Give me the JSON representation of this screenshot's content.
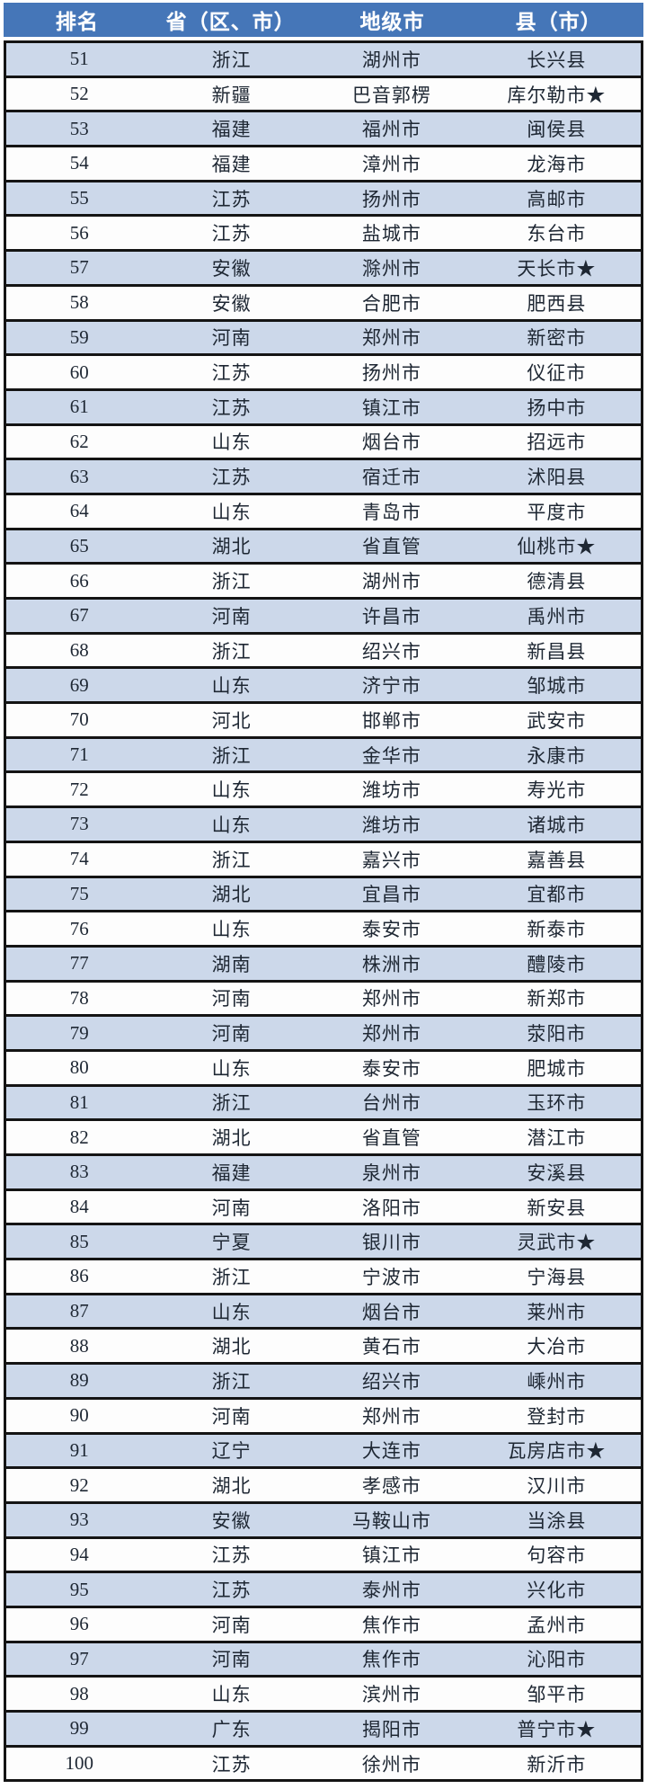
{
  "colors": {
    "header_bg": "#4576b8",
    "header_text": "#ffffff",
    "row_alt_bg": "#ccd8ea",
    "row_bg": "#fdfdfd",
    "border": "#141414",
    "cell_text": "#1e2733"
  },
  "table": {
    "headers": [
      "排名",
      "省（区、市）",
      "地级市",
      "县（市）"
    ],
    "rows": [
      {
        "rank": "51",
        "province": "浙江",
        "city": "湖州市",
        "county": "长兴县"
      },
      {
        "rank": "52",
        "province": "新疆",
        "city": "巴音郭楞",
        "county": "库尔勒市★"
      },
      {
        "rank": "53",
        "province": "福建",
        "city": "福州市",
        "county": "闽侯县"
      },
      {
        "rank": "54",
        "province": "福建",
        "city": "漳州市",
        "county": "龙海市"
      },
      {
        "rank": "55",
        "province": "江苏",
        "city": "扬州市",
        "county": "高邮市"
      },
      {
        "rank": "56",
        "province": "江苏",
        "city": "盐城市",
        "county": "东台市"
      },
      {
        "rank": "57",
        "province": "安徽",
        "city": "滁州市",
        "county": "天长市★"
      },
      {
        "rank": "58",
        "province": "安徽",
        "city": "合肥市",
        "county": "肥西县"
      },
      {
        "rank": "59",
        "province": "河南",
        "city": "郑州市",
        "county": "新密市"
      },
      {
        "rank": "60",
        "province": "江苏",
        "city": "扬州市",
        "county": "仪征市"
      },
      {
        "rank": "61",
        "province": "江苏",
        "city": "镇江市",
        "county": "扬中市"
      },
      {
        "rank": "62",
        "province": "山东",
        "city": "烟台市",
        "county": "招远市"
      },
      {
        "rank": "63",
        "province": "江苏",
        "city": "宿迁市",
        "county": "沭阳县"
      },
      {
        "rank": "64",
        "province": "山东",
        "city": "青岛市",
        "county": "平度市"
      },
      {
        "rank": "65",
        "province": "湖北",
        "city": "省直管",
        "county": "仙桃市★"
      },
      {
        "rank": "66",
        "province": "浙江",
        "city": "湖州市",
        "county": "德清县"
      },
      {
        "rank": "67",
        "province": "河南",
        "city": "许昌市",
        "county": "禹州市"
      },
      {
        "rank": "68",
        "province": "浙江",
        "city": "绍兴市",
        "county": "新昌县"
      },
      {
        "rank": "69",
        "province": "山东",
        "city": "济宁市",
        "county": "邹城市"
      },
      {
        "rank": "70",
        "province": "河北",
        "city": "邯郸市",
        "county": "武安市"
      },
      {
        "rank": "71",
        "province": "浙江",
        "city": "金华市",
        "county": "永康市"
      },
      {
        "rank": "72",
        "province": "山东",
        "city": "潍坊市",
        "county": "寿光市"
      },
      {
        "rank": "73",
        "province": "山东",
        "city": "潍坊市",
        "county": "诸城市"
      },
      {
        "rank": "74",
        "province": "浙江",
        "city": "嘉兴市",
        "county": "嘉善县"
      },
      {
        "rank": "75",
        "province": "湖北",
        "city": "宜昌市",
        "county": "宜都市"
      },
      {
        "rank": "76",
        "province": "山东",
        "city": "泰安市",
        "county": "新泰市"
      },
      {
        "rank": "77",
        "province": "湖南",
        "city": "株洲市",
        "county": "醴陵市"
      },
      {
        "rank": "78",
        "province": "河南",
        "city": "郑州市",
        "county": "新郑市"
      },
      {
        "rank": "79",
        "province": "河南",
        "city": "郑州市",
        "county": "荥阳市"
      },
      {
        "rank": "80",
        "province": "山东",
        "city": "泰安市",
        "county": "肥城市"
      },
      {
        "rank": "81",
        "province": "浙江",
        "city": "台州市",
        "county": "玉环市"
      },
      {
        "rank": "82",
        "province": "湖北",
        "city": "省直管",
        "county": "潜江市"
      },
      {
        "rank": "83",
        "province": "福建",
        "city": "泉州市",
        "county": "安溪县"
      },
      {
        "rank": "84",
        "province": "河南",
        "city": "洛阳市",
        "county": "新安县"
      },
      {
        "rank": "85",
        "province": "宁夏",
        "city": "银川市",
        "county": "灵武市★"
      },
      {
        "rank": "86",
        "province": "浙江",
        "city": "宁波市",
        "county": "宁海县"
      },
      {
        "rank": "87",
        "province": "山东",
        "city": "烟台市",
        "county": "莱州市"
      },
      {
        "rank": "88",
        "province": "湖北",
        "city": "黄石市",
        "county": "大冶市"
      },
      {
        "rank": "89",
        "province": "浙江",
        "city": "绍兴市",
        "county": "嵊州市"
      },
      {
        "rank": "90",
        "province": "河南",
        "city": "郑州市",
        "county": "登封市"
      },
      {
        "rank": "91",
        "province": "辽宁",
        "city": "大连市",
        "county": "瓦房店市★"
      },
      {
        "rank": "92",
        "province": "湖北",
        "city": "孝感市",
        "county": "汉川市"
      },
      {
        "rank": "93",
        "province": "安徽",
        "city": "马鞍山市",
        "county": "当涂县"
      },
      {
        "rank": "94",
        "province": "江苏",
        "city": "镇江市",
        "county": "句容市"
      },
      {
        "rank": "95",
        "province": "江苏",
        "city": "泰州市",
        "county": "兴化市"
      },
      {
        "rank": "96",
        "province": "河南",
        "city": "焦作市",
        "county": "孟州市"
      },
      {
        "rank": "97",
        "province": "河南",
        "city": "焦作市",
        "county": "沁阳市"
      },
      {
        "rank": "98",
        "province": "山东",
        "city": "滨州市",
        "county": "邹平市"
      },
      {
        "rank": "99",
        "province": "广东",
        "city": "揭阳市",
        "county": "普宁市★"
      },
      {
        "rank": "100",
        "province": "江苏",
        "city": "徐州市",
        "county": "新沂市"
      }
    ]
  }
}
